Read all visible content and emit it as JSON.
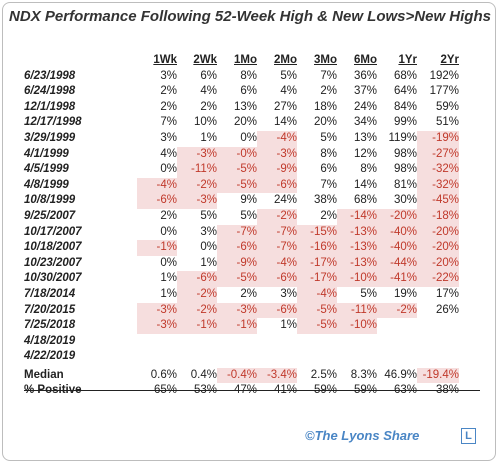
{
  "title": "NDX Performance Following 52-Week High & New Lows>New Highs",
  "columns": [
    "1Wk",
    "2Wk",
    "1Mo",
    "2Mo",
    "3Mo",
    "6Mo",
    "1Yr",
    "2Yr"
  ],
  "rows": [
    {
      "date": "6/23/1998",
      "values": [
        "3%",
        "6%",
        "8%",
        "5%",
        "7%",
        "36%",
        "68%",
        "192%"
      ]
    },
    {
      "date": "6/24/1998",
      "values": [
        "2%",
        "4%",
        "6%",
        "4%",
        "2%",
        "37%",
        "64%",
        "177%"
      ]
    },
    {
      "date": "12/1/1998",
      "values": [
        "2%",
        "2%",
        "13%",
        "27%",
        "18%",
        "24%",
        "84%",
        "59%"
      ]
    },
    {
      "date": "12/17/1998",
      "values": [
        "7%",
        "10%",
        "20%",
        "14%",
        "20%",
        "34%",
        "99%",
        "51%"
      ]
    },
    {
      "date": "3/29/1999",
      "values": [
        "3%",
        "1%",
        "0%",
        "-4%",
        "5%",
        "13%",
        "119%",
        "-19%"
      ]
    },
    {
      "date": "4/1/1999",
      "values": [
        "4%",
        "-3%",
        "-0%",
        "-3%",
        "8%",
        "12%",
        "98%",
        "-27%"
      ]
    },
    {
      "date": "4/5/1999",
      "values": [
        "0%",
        "-11%",
        "-5%",
        "-9%",
        "6%",
        "8%",
        "98%",
        "-32%"
      ]
    },
    {
      "date": "4/8/1999",
      "values": [
        "-4%",
        "-2%",
        "-5%",
        "-6%",
        "7%",
        "14%",
        "81%",
        "-32%"
      ]
    },
    {
      "date": "10/8/1999",
      "values": [
        "-6%",
        "-3%",
        "9%",
        "24%",
        "38%",
        "68%",
        "30%",
        "-45%"
      ]
    },
    {
      "date": "9/25/2007",
      "values": [
        "2%",
        "5%",
        "5%",
        "-2%",
        "2%",
        "-14%",
        "-20%",
        "-18%"
      ]
    },
    {
      "date": "10/17/2007",
      "values": [
        "0%",
        "3%",
        "-7%",
        "-7%",
        "-15%",
        "-13%",
        "-40%",
        "-20%"
      ]
    },
    {
      "date": "10/18/2007",
      "values": [
        "-1%",
        "0%",
        "-6%",
        "-7%",
        "-16%",
        "-13%",
        "-40%",
        "-20%"
      ]
    },
    {
      "date": "10/23/2007",
      "values": [
        "0%",
        "1%",
        "-9%",
        "-4%",
        "-17%",
        "-13%",
        "-44%",
        "-20%"
      ]
    },
    {
      "date": "10/30/2007",
      "values": [
        "1%",
        "-6%",
        "-5%",
        "-6%",
        "-17%",
        "-10%",
        "-41%",
        "-22%"
      ]
    },
    {
      "date": "7/18/2014",
      "values": [
        "1%",
        "-2%",
        "2%",
        "3%",
        "-4%",
        "5%",
        "19%",
        "17%"
      ]
    },
    {
      "date": "7/20/2015",
      "values": [
        "-3%",
        "-2%",
        "-3%",
        "-6%",
        "-5%",
        "-11%",
        "-2%",
        "26%"
      ]
    },
    {
      "date": "7/25/2018",
      "values": [
        "-3%",
        "-1%",
        "-1%",
        "1%",
        "-5%",
        "-10%",
        "",
        ""
      ]
    },
    {
      "date": "4/18/2019",
      "values": [
        "",
        "",
        "",
        "",
        "",
        "",
        "",
        ""
      ]
    },
    {
      "date": "4/22/2019",
      "values": [
        "",
        "",
        "",
        "",
        "",
        "",
        "",
        ""
      ]
    }
  ],
  "median": {
    "label": "Median",
    "values": [
      "0.6%",
      "0.4%",
      "-0.4%",
      "-3.4%",
      "2.5%",
      "8.3%",
      "46.9%",
      "-19.4%"
    ]
  },
  "positive": {
    "label": "% Positive",
    "values": [
      "65%",
      "53%",
      "47%",
      "41%",
      "59%",
      "59%",
      "63%",
      "38%"
    ]
  },
  "footer": {
    "credit": "©The Lyons Share",
    "logo_letter": "L"
  },
  "colors": {
    "negative_bg": "#f6dede",
    "negative_text": "#c0392b",
    "credit": "#4a86c5"
  }
}
